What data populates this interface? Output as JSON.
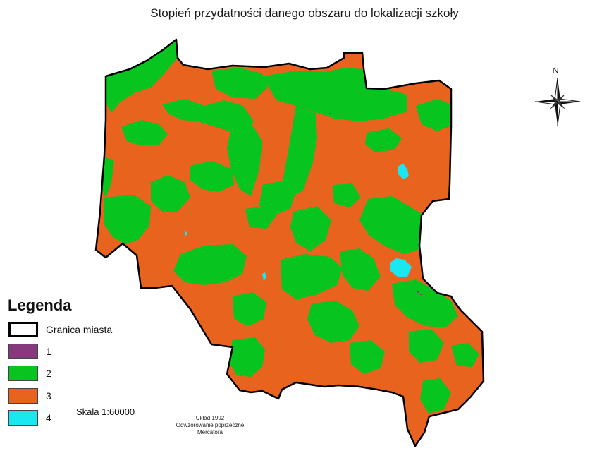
{
  "title": "Stopień przydatności danego obszaru do lokalizacji szkoły",
  "legend": {
    "title": "Legenda",
    "items": [
      {
        "label": "Granica miasta",
        "type": "boundary"
      },
      {
        "label": "1",
        "color": "#863a7d"
      },
      {
        "label": "2",
        "color": "#08c41f"
      },
      {
        "label": "3",
        "color": "#e8641e"
      },
      {
        "label": "4",
        "color": "#1ae8f0"
      }
    ]
  },
  "scale": "Skala 1:60000",
  "projection": {
    "line1": "Układ 1992",
    "line2": "Odwzorowanie poprzeczne",
    "line3": "Mercatora"
  },
  "north": "N",
  "colors": {
    "class1": "#863a7d",
    "class2": "#08c41f",
    "class3": "#e8641e",
    "class4": "#1ae8f0",
    "boundary": "#000000"
  }
}
